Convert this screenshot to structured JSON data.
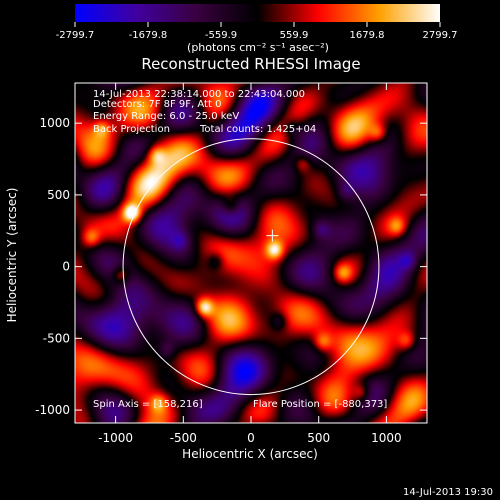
{
  "chart_data": {
    "type": "heatmap",
    "title": "Reconstructed RHESSI Image",
    "xlabel": "Heliocentric X (arcsec)",
    "ylabel": "Heliocentric Y (arcsec)",
    "xlim": [
      -1300,
      1300
    ],
    "ylim": [
      -1090,
      1280
    ],
    "x_ticks": [
      -1000,
      -500,
      0,
      500,
      1000
    ],
    "y_ticks": [
      -1000,
      -500,
      0,
      500,
      1000
    ],
    "x_tick_labels": [
      "-1000",
      "-500",
      "0",
      "500",
      "1000"
    ],
    "y_tick_labels": [
      "-1000",
      "-500",
      "0",
      "500",
      "1000"
    ],
    "colorbar": {
      "ticks": [
        -2799.7,
        -1679.8,
        -559.9,
        559.9,
        1679.8,
        2799.7
      ],
      "tick_labels": [
        "-2799.7",
        "-1679.8",
        "-559.9",
        "559.9",
        "1679.8",
        "2799.7"
      ],
      "unit_label": "(photons cm⁻² s⁻¹ asec⁻²)",
      "range": [
        -2799.7,
        2799.7
      ],
      "colors": [
        "#0000ff",
        "#4000a0",
        "#3a0040",
        "#000000",
        "#ff0000",
        "#ffa000",
        "#ffffff"
      ]
    },
    "annotations": {
      "time_range": "14-Jul-2013 22:38:14.000 to 22:43:04.000",
      "detectors": "Detectors: 7F 8F 9F, Att 0",
      "energy": "Energy Range: 6.0 - 25.0 keV",
      "method": "Back Projection",
      "counts": "Total counts: 1.425+04",
      "spin_axis": "Spin Axis = [158,216]",
      "flare_position": "Flare Position = [-880,373]"
    },
    "solar_limb": {
      "center": [
        0,
        0
      ],
      "radius": 945
    },
    "crosshair": [
      158,
      216
    ],
    "bright_sources": [
      {
        "x": -880,
        "y": 373,
        "value": 2790
      },
      {
        "x": 175,
        "y": 115,
        "value": 2100
      },
      {
        "x": -345,
        "y": -285,
        "value": 2350
      },
      {
        "x": -960,
        "y": -60,
        "value": 1500
      },
      {
        "x": 680,
        "y": -45,
        "value": 1350
      },
      {
        "x": 530,
        "y": -525,
        "value": 1300
      },
      {
        "x": -700,
        "y": 780,
        "value": 1400
      },
      {
        "x": -1100,
        "y": 960,
        "value": 1250
      },
      {
        "x": 940,
        "y": 930,
        "value": 1300
      },
      {
        "x": 1080,
        "y": 280,
        "value": 1200
      },
      {
        "x": -150,
        "y": 420,
        "value": 1250
      },
      {
        "x": 380,
        "y": 720,
        "value": 1150
      },
      {
        "x": -680,
        "y": -950,
        "value": 1200
      },
      {
        "x": 820,
        "y": -880,
        "value": 1250
      },
      {
        "x": 1150,
        "y": -520,
        "value": 1150
      },
      {
        "x": -1180,
        "y": 200,
        "value": 1300
      }
    ],
    "dark_regions": [
      {
        "x": 520,
        "y": 260,
        "value": -1050
      },
      {
        "x": -260,
        "y": 40,
        "value": -1000
      },
      {
        "x": 210,
        "y": -380,
        "value": -950
      },
      {
        "x": -620,
        "y": -580,
        "value": -950
      },
      {
        "x": 700,
        "y": 520,
        "value": -900
      },
      {
        "x": 1160,
        "y": 40,
        "value": -1050
      },
      {
        "x": -520,
        "y": 180,
        "value": -900
      },
      {
        "x": 300,
        "y": 960,
        "value": -850
      }
    ],
    "date_stamp": "14-Jul-2013 19:30"
  }
}
